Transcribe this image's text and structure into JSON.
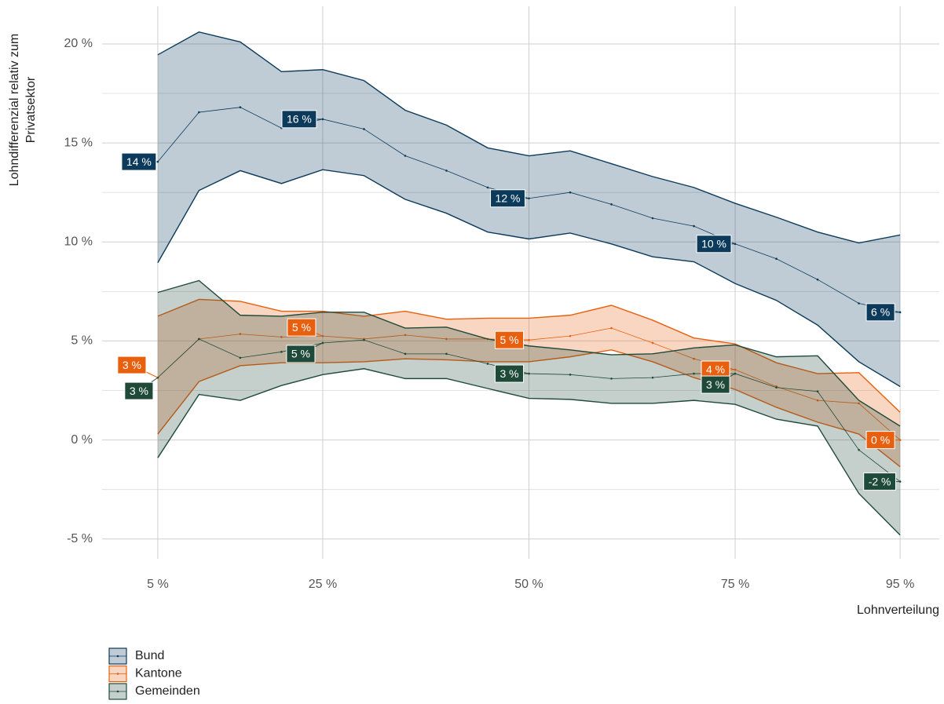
{
  "chart_data": {
    "type": "ribbon",
    "xlabel": "Lohnverteilung",
    "ylabel": [
      "Lohndifferenzial relativ zum",
      "Privatsektor"
    ],
    "x": [
      5,
      10,
      15,
      20,
      25,
      30,
      35,
      40,
      45,
      50,
      55,
      60,
      65,
      70,
      75,
      80,
      85,
      90,
      95
    ],
    "xlim": [
      -1.75,
      99.75
    ],
    "ylim": [
      -6,
      21.9
    ],
    "xticks": [
      {
        "value": 5,
        "label": "5 %"
      },
      {
        "value": 25,
        "label": "25 %"
      },
      {
        "value": 50,
        "label": "50 %"
      },
      {
        "value": 75,
        "label": "75 %"
      },
      {
        "value": 95,
        "label": "95 %"
      }
    ],
    "yticks": [
      {
        "value": -5,
        "label": "-5 %"
      },
      {
        "value": 0,
        "label": "0 %"
      },
      {
        "value": 5,
        "label": "5 %"
      },
      {
        "value": 10,
        "label": "10 %"
      },
      {
        "value": 15,
        "label": "15 %"
      },
      {
        "value": 20,
        "label": "20 %"
      }
    ],
    "y_minor_ticks": [
      -2.5,
      2.5,
      7.5,
      12.5,
      17.5
    ],
    "grid": true,
    "legend": "bottom-left",
    "series": [
      {
        "name": "Bund",
        "color": "#0b3a5b",
        "values": [
          14.05,
          16.55,
          16.8,
          15.75,
          16.2,
          15.7,
          14.35,
          13.6,
          12.75,
          12.2,
          12.5,
          11.9,
          11.2,
          10.8,
          9.9,
          9.15,
          8.1,
          6.9,
          6.45
        ],
        "upper": [
          19.45,
          20.6,
          20.1,
          18.6,
          18.7,
          18.15,
          16.65,
          15.9,
          14.75,
          14.35,
          14.6,
          13.95,
          13.3,
          12.75,
          11.95,
          11.25,
          10.5,
          9.95,
          10.35
        ],
        "lower": [
          8.95,
          12.6,
          13.6,
          12.95,
          13.65,
          13.35,
          12.15,
          11.45,
          10.5,
          10.15,
          10.45,
          9.9,
          9.25,
          9.0,
          7.9,
          7.05,
          5.8,
          3.95,
          2.7
        ],
        "value_labels": [
          "14 %",
          null,
          null,
          null,
          "16 %",
          null,
          null,
          null,
          null,
          "12 %",
          null,
          null,
          null,
          null,
          "10 %",
          null,
          null,
          null,
          "6 %"
        ]
      },
      {
        "name": "Kantone",
        "color": "#e8600e",
        "values": [
          3.15,
          5.1,
          5.35,
          5.2,
          5.25,
          5.1,
          5.3,
          5.1,
          5.1,
          5.05,
          5.25,
          5.65,
          4.9,
          4.1,
          3.55,
          2.7,
          2.0,
          1.85,
          0.0
        ],
        "upper": [
          6.25,
          7.1,
          7.0,
          6.5,
          6.5,
          6.25,
          6.5,
          6.1,
          6.15,
          6.15,
          6.3,
          6.8,
          6.05,
          5.15,
          4.85,
          3.9,
          3.35,
          3.4,
          1.4
        ],
        "lower": [
          0.3,
          2.95,
          3.75,
          3.9,
          3.9,
          3.95,
          4.1,
          4.05,
          3.95,
          3.95,
          4.2,
          4.55,
          3.95,
          3.15,
          2.55,
          1.65,
          0.9,
          0.3,
          -1.35
        ],
        "value_labels": [
          "3 %",
          null,
          null,
          null,
          "5 %",
          null,
          null,
          null,
          null,
          "5 %",
          null,
          null,
          null,
          null,
          "4 %",
          null,
          null,
          null,
          "0 %"
        ]
      },
      {
        "name": "Gemeinden",
        "color": "#1f4a3a",
        "values": [
          3.15,
          5.1,
          4.15,
          4.45,
          4.9,
          5.05,
          4.35,
          4.35,
          3.85,
          3.35,
          3.3,
          3.1,
          3.15,
          3.35,
          3.35,
          2.65,
          2.45,
          -0.5,
          -2.1
        ],
        "upper": [
          7.45,
          8.05,
          6.3,
          6.25,
          6.45,
          6.45,
          5.65,
          5.7,
          5.1,
          4.75,
          4.55,
          4.3,
          4.35,
          4.65,
          4.8,
          4.2,
          4.25,
          2.0,
          0.7
        ],
        "lower": [
          -0.9,
          2.3,
          2.0,
          2.75,
          3.3,
          3.6,
          3.1,
          3.1,
          2.6,
          2.1,
          2.05,
          1.85,
          1.85,
          2.0,
          1.8,
          1.05,
          0.7,
          -2.7,
          -4.8
        ],
        "value_labels": [
          "3 %",
          null,
          null,
          null,
          "5 %",
          null,
          null,
          null,
          null,
          "3 %",
          null,
          null,
          null,
          null,
          "3 %",
          null,
          null,
          null,
          "-2 %"
        ]
      }
    ]
  }
}
